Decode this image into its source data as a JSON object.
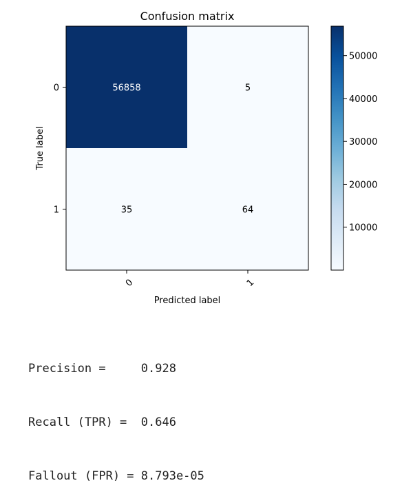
{
  "chart_data": {
    "type": "heatmap",
    "title": "Confusion matrix",
    "xlabel": "Predicted label",
    "ylabel": "True label",
    "x_categories": [
      "0",
      "1"
    ],
    "y_categories": [
      "0",
      "1"
    ],
    "values": [
      [
        56858,
        5
      ],
      [
        35,
        64
      ]
    ],
    "colormap": "Blues",
    "colorbar": {
      "ticks": [
        10000,
        20000,
        30000,
        40000,
        50000
      ],
      "tick_labels": [
        "10000",
        "20000",
        "30000",
        "40000",
        "50000"
      ],
      "range": [
        0,
        56858
      ]
    },
    "grid": false,
    "x_tick_rotation": 45
  },
  "metrics": [
    {
      "label": "Precision =     ",
      "value": "0.928"
    },
    {
      "label": "Recall (TPR) =  ",
      "value": "0.646"
    },
    {
      "label": "Fallout (FPR) = ",
      "value": "8.793e-05"
    }
  ],
  "colors": {
    "high": "#08306b",
    "low": "#f7fbff",
    "text_on_dark": "#ffffff",
    "text_on_light": "#000000"
  }
}
